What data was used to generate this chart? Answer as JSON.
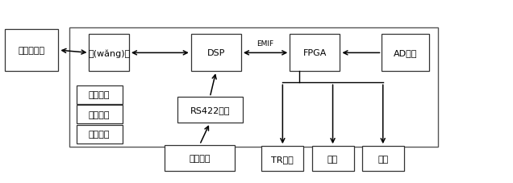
{
  "bg_color": "#ffffff",
  "border_color": "#333333",
  "box_color": "#ffffff",
  "text_color": "#000000",
  "font_size": 8,
  "emif_label": "EMIF",
  "figsize": [
    6.36,
    2.28
  ],
  "dpi": 100,
  "xlim": [
    0,
    1
  ],
  "ylim": [
    -0.38,
    1.0
  ]
}
